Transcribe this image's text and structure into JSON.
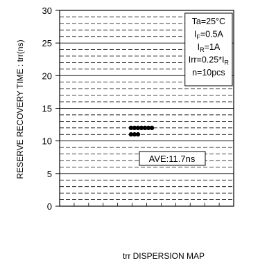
{
  "chart_data": {
    "type": "scatter",
    "title": "",
    "xlabel": "trr DISPERSION MAP",
    "ylabel": "RESERVE RECOVERY TIME : trr(ns)",
    "ylim": [
      0,
      30
    ],
    "yticks": [
      0,
      5,
      10,
      15,
      20,
      25,
      30
    ],
    "y_tick_labels": [
      "0",
      "5",
      "10",
      "15",
      "20",
      "25",
      "30"
    ],
    "grid": true,
    "major_gridlines": [
      5,
      10,
      15,
      20,
      25
    ],
    "minor_gridline_step": 1,
    "point_color": "#000000",
    "points": [
      {
        "x": 0.41,
        "y": 12.0
      },
      {
        "x": 0.43,
        "y": 12.0
      },
      {
        "x": 0.45,
        "y": 12.0
      },
      {
        "x": 0.47,
        "y": 12.0
      },
      {
        "x": 0.49,
        "y": 12.0
      },
      {
        "x": 0.51,
        "y": 12.0
      },
      {
        "x": 0.53,
        "y": 12.0
      },
      {
        "x": 0.41,
        "y": 11.0
      },
      {
        "x": 0.43,
        "y": 11.0
      },
      {
        "x": 0.45,
        "y": 11.0
      }
    ],
    "conditions": [
      {
        "main": "Ta=25°C",
        "sub": "",
        "tail": ""
      },
      {
        "main": "I",
        "sub": "F",
        "tail": "=0.5A"
      },
      {
        "main": "I",
        "sub": "R",
        "tail": "=1A"
      },
      {
        "main": "Irr=0.25*I",
        "sub": "R",
        "tail": ""
      },
      {
        "main": "n=10pcs",
        "sub": "",
        "tail": ""
      }
    ],
    "average_label": "AVE:11.7ns"
  }
}
